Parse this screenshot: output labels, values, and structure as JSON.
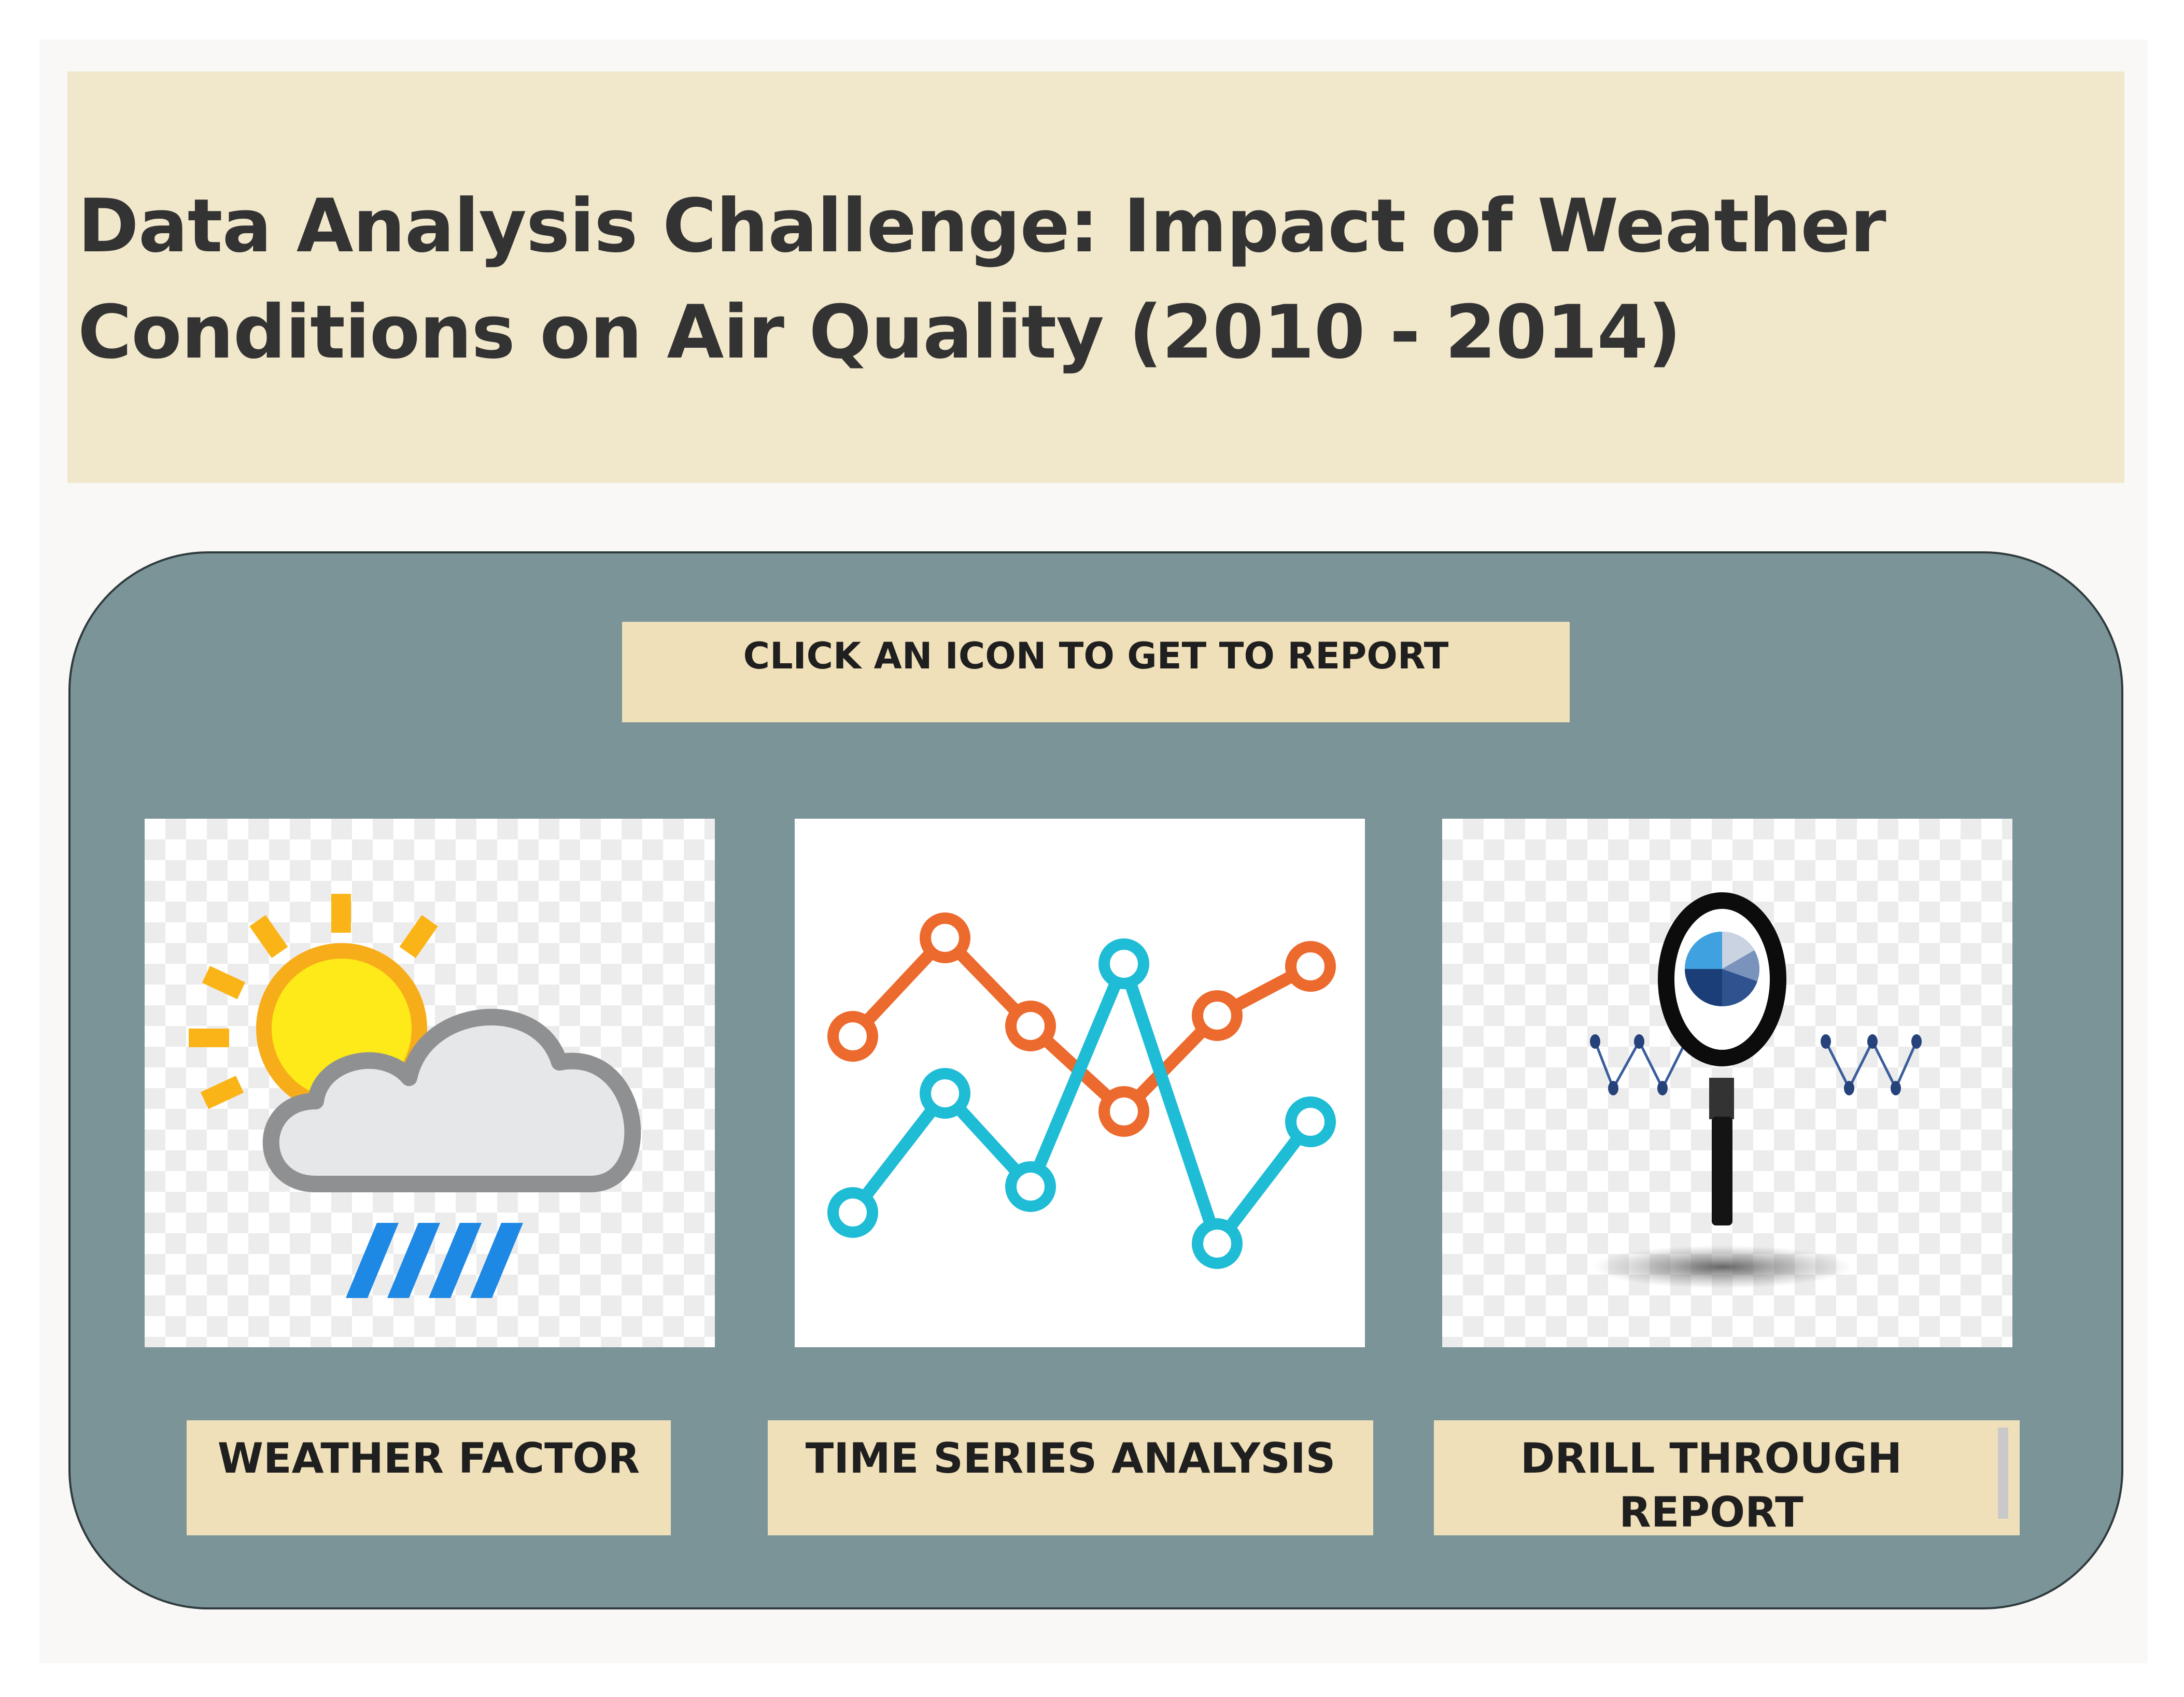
{
  "header": {
    "title": "Data Analysis Challenge: Impact of Weather Conditions on Air Quality (2010 - 2014)"
  },
  "panel": {
    "instruction": "CLICK AN ICON TO GET TO REPORT"
  },
  "tiles": [
    {
      "icon": "weather-sun-cloud-rain-icon",
      "label": "WEATHER FACTOR"
    },
    {
      "icon": "line-chart-icon",
      "label": "TIME SERIES ANALYSIS"
    },
    {
      "icon": "magnifier-pie-chart-icon",
      "label": "DRILL THROUGH REPORT"
    }
  ],
  "colors": {
    "title_background": "#f1e7cb",
    "panel_background": "#7a9498",
    "label_background": "#efe0b9",
    "sun": "#fbc02d",
    "rain": "#1e88e5",
    "orange_line": "#ec6a2e",
    "cyan_line": "#1fbcd6"
  }
}
